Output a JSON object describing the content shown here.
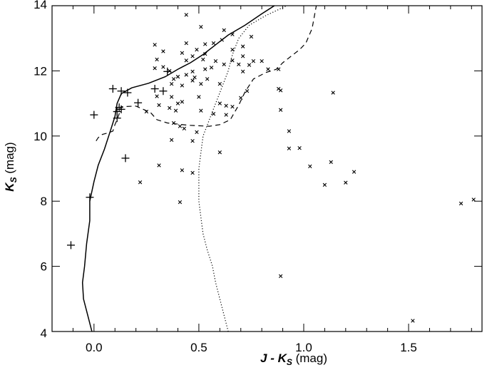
{
  "chart_data": {
    "type": "scatter",
    "xlabel": {
      "var1": "J",
      "op": " - ",
      "var2": "K",
      "sub": "S",
      "unit": " (mag)"
    },
    "ylabel": {
      "var": "K",
      "sub": "S",
      "unit": " (mag)"
    },
    "xlim": [
      -0.2,
      1.85
    ],
    "ylim": [
      14,
      4
    ],
    "x_ticks": [
      0.0,
      0.5,
      1.0,
      1.5
    ],
    "x_tick_labels": [
      "0.0",
      "0.5",
      "1.0",
      "1.5"
    ],
    "y_ticks": [
      4,
      6,
      8,
      10,
      12,
      14
    ],
    "y_tick_labels": [
      "4",
      "6",
      "8",
      "10",
      "12",
      "14"
    ],
    "x_minor_step": 0.1,
    "y_minor_step": 0.5,
    "grid": false,
    "series": [
      {
        "marker": "plus",
        "points": [
          [
            -0.11,
            6.65
          ],
          [
            -0.02,
            8.12
          ],
          [
            0.15,
            9.32
          ],
          [
            0.0,
            10.65
          ],
          [
            0.11,
            10.55
          ],
          [
            0.11,
            10.75
          ],
          [
            0.13,
            10.82
          ],
          [
            0.12,
            10.88
          ],
          [
            0.21,
            11.02
          ],
          [
            0.16,
            11.33
          ],
          [
            0.13,
            11.38
          ],
          [
            0.09,
            11.45
          ],
          [
            0.29,
            11.45
          ],
          [
            0.33,
            11.38
          ],
          [
            0.35,
            11.98
          ]
        ]
      },
      {
        "marker": "cross",
        "points": [
          [
            1.52,
            4.33
          ],
          [
            0.89,
            5.7
          ],
          [
            0.41,
            7.97
          ],
          [
            1.75,
            7.93
          ],
          [
            1.81,
            8.05
          ],
          [
            0.22,
            8.58
          ],
          [
            1.1,
            8.5
          ],
          [
            1.2,
            8.57
          ],
          [
            1.24,
            8.9
          ],
          [
            0.42,
            8.95
          ],
          [
            0.47,
            8.87
          ],
          [
            0.31,
            9.1
          ],
          [
            1.03,
            9.07
          ],
          [
            1.13,
            9.2
          ],
          [
            0.6,
            9.5
          ],
          [
            0.93,
            9.62
          ],
          [
            0.98,
            9.63
          ],
          [
            0.37,
            9.88
          ],
          [
            0.47,
            9.85
          ],
          [
            0.43,
            10.23
          ],
          [
            0.49,
            10.12
          ],
          [
            0.93,
            10.15
          ],
          [
            0.38,
            10.4
          ],
          [
            0.41,
            10.3
          ],
          [
            0.25,
            10.75
          ],
          [
            0.39,
            10.78
          ],
          [
            0.51,
            10.78
          ],
          [
            0.63,
            10.65
          ],
          [
            0.57,
            10.68
          ],
          [
            0.31,
            10.95
          ],
          [
            0.36,
            10.86
          ],
          [
            0.4,
            11.0
          ],
          [
            0.42,
            11.05
          ],
          [
            0.37,
            11.2
          ],
          [
            0.5,
            11.2
          ],
          [
            0.6,
            11.0
          ],
          [
            0.63,
            10.93
          ],
          [
            0.66,
            10.9
          ],
          [
            0.7,
            11.17
          ],
          [
            0.89,
            10.8
          ],
          [
            0.3,
            11.22
          ],
          [
            0.89,
            11.4
          ],
          [
            0.88,
            11.45
          ],
          [
            1.14,
            11.33
          ],
          [
            0.73,
            11.38
          ],
          [
            0.37,
            11.6
          ],
          [
            0.42,
            11.55
          ],
          [
            0.47,
            11.7
          ],
          [
            0.51,
            11.6
          ],
          [
            0.54,
            11.75
          ],
          [
            0.6,
            11.6
          ],
          [
            0.38,
            11.75
          ],
          [
            0.4,
            11.82
          ],
          [
            0.44,
            11.88
          ],
          [
            0.48,
            11.8
          ],
          [
            0.36,
            12.0
          ],
          [
            0.29,
            12.08
          ],
          [
            0.33,
            12.12
          ],
          [
            0.47,
            11.98
          ],
          [
            0.53,
            12.05
          ],
          [
            0.56,
            12.1
          ],
          [
            0.62,
            12.2
          ],
          [
            0.69,
            12.2
          ],
          [
            0.71,
            11.98
          ],
          [
            0.74,
            12.18
          ],
          [
            0.83,
            12.05
          ],
          [
            0.88,
            12.05
          ],
          [
            0.3,
            12.35
          ],
          [
            0.33,
            12.6
          ],
          [
            0.44,
            12.32
          ],
          [
            0.47,
            12.45
          ],
          [
            0.52,
            12.35
          ],
          [
            0.58,
            12.3
          ],
          [
            0.66,
            12.32
          ],
          [
            0.71,
            12.45
          ],
          [
            0.76,
            12.3
          ],
          [
            0.8,
            12.3
          ],
          [
            0.42,
            12.55
          ],
          [
            0.49,
            12.65
          ],
          [
            0.53,
            12.52
          ],
          [
            0.66,
            12.65
          ],
          [
            0.71,
            12.75
          ],
          [
            0.29,
            12.8
          ],
          [
            0.44,
            12.85
          ],
          [
            0.53,
            12.82
          ],
          [
            0.57,
            12.85
          ],
          [
            0.61,
            12.95
          ],
          [
            0.66,
            13.12
          ],
          [
            0.75,
            13.05
          ],
          [
            0.62,
            13.25
          ],
          [
            0.51,
            13.35
          ],
          [
            0.44,
            13.72
          ]
        ]
      },
      {
        "style": "solid",
        "points": [
          [
            -0.01,
            4.0
          ],
          [
            -0.03,
            4.5
          ],
          [
            -0.05,
            5.0
          ],
          [
            -0.055,
            5.5
          ],
          [
            -0.045,
            6.0
          ],
          [
            -0.035,
            6.7
          ],
          [
            -0.02,
            7.4
          ],
          [
            -0.02,
            8.0
          ],
          [
            0.0,
            8.6
          ],
          [
            0.02,
            9.1
          ],
          [
            0.05,
            9.6
          ],
          [
            0.08,
            10.2
          ],
          [
            0.1,
            10.6
          ],
          [
            0.11,
            11.0
          ],
          [
            0.13,
            11.3
          ],
          [
            0.18,
            11.48
          ],
          [
            0.26,
            11.62
          ],
          [
            0.34,
            11.82
          ],
          [
            0.4,
            12.05
          ],
          [
            0.46,
            12.25
          ],
          [
            0.52,
            12.5
          ],
          [
            0.58,
            12.8
          ],
          [
            0.64,
            13.1
          ],
          [
            0.72,
            13.4
          ],
          [
            0.8,
            13.75
          ],
          [
            0.86,
            14.0
          ]
        ]
      },
      {
        "style": "dashed",
        "points": [
          [
            0.01,
            9.85
          ],
          [
            0.02,
            9.95
          ],
          [
            0.04,
            10.05
          ],
          [
            0.07,
            10.1
          ],
          [
            0.09,
            10.15
          ],
          [
            0.1,
            10.35
          ],
          [
            0.11,
            10.5
          ],
          [
            0.12,
            10.68
          ],
          [
            0.13,
            10.9
          ],
          [
            0.2,
            10.92
          ],
          [
            0.27,
            10.72
          ],
          [
            0.3,
            10.5
          ],
          [
            0.35,
            10.4
          ],
          [
            0.45,
            10.33
          ],
          [
            0.55,
            10.3
          ],
          [
            0.6,
            10.35
          ],
          [
            0.65,
            10.5
          ],
          [
            0.69,
            10.95
          ],
          [
            0.72,
            11.35
          ],
          [
            0.76,
            11.75
          ],
          [
            0.82,
            11.95
          ],
          [
            0.87,
            12.05
          ],
          [
            0.9,
            12.25
          ],
          [
            0.94,
            12.45
          ],
          [
            0.98,
            12.65
          ],
          [
            1.01,
            12.85
          ],
          [
            1.04,
            13.3
          ],
          [
            1.06,
            14.0
          ]
        ]
      },
      {
        "style": "dotted",
        "points": [
          [
            0.64,
            4.0
          ],
          [
            0.62,
            4.5
          ],
          [
            0.6,
            5.0
          ],
          [
            0.58,
            5.5
          ],
          [
            0.565,
            6.0
          ],
          [
            0.54,
            6.5
          ],
          [
            0.52,
            7.0
          ],
          [
            0.51,
            7.5
          ],
          [
            0.5,
            8.0
          ],
          [
            0.5,
            8.5
          ],
          [
            0.5,
            9.0
          ],
          [
            0.51,
            9.5
          ],
          [
            0.52,
            10.0
          ],
          [
            0.55,
            10.5
          ],
          [
            0.58,
            11.0
          ],
          [
            0.61,
            11.5
          ],
          [
            0.64,
            12.0
          ],
          [
            0.66,
            12.5
          ],
          [
            0.69,
            13.0
          ],
          [
            0.74,
            13.4
          ],
          [
            0.82,
            13.7
          ],
          [
            0.92,
            14.0
          ]
        ]
      }
    ]
  }
}
